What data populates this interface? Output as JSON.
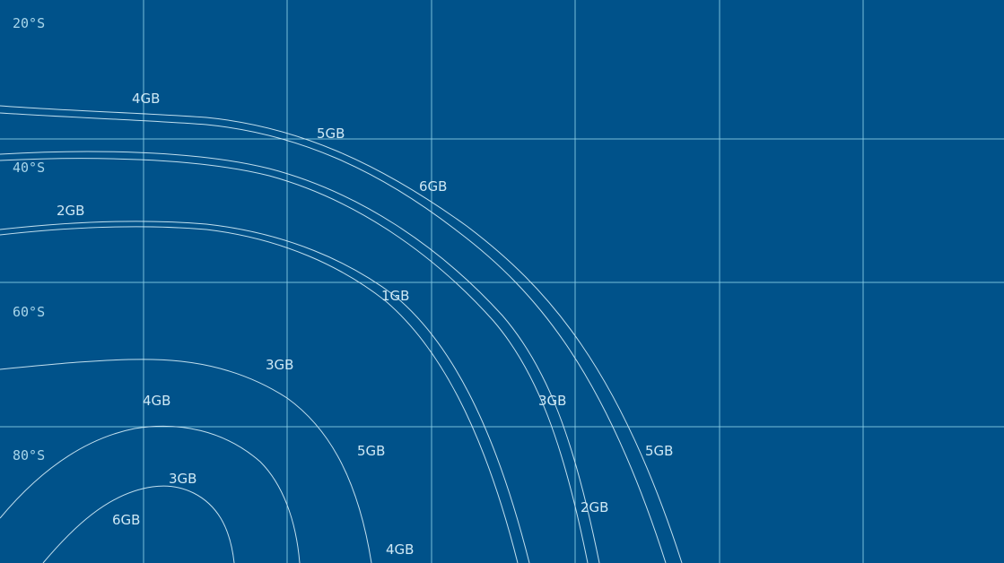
{
  "map": {
    "colors": {
      "background": "#00528a",
      "grid": "#8fd0e8",
      "contour": "#d6eef8",
      "label": "#cfe9f5"
    },
    "latitude_labels": [
      "20°S",
      "40°S",
      "60°S",
      "80°S"
    ],
    "contour_labels": [
      "4GB",
      "5GB",
      "6GB",
      "2GB",
      "1GB",
      "3GB",
      "4GB",
      "3GB",
      "5GB",
      "5GB",
      "3GB",
      "2GB",
      "6GB",
      "4GB"
    ]
  }
}
